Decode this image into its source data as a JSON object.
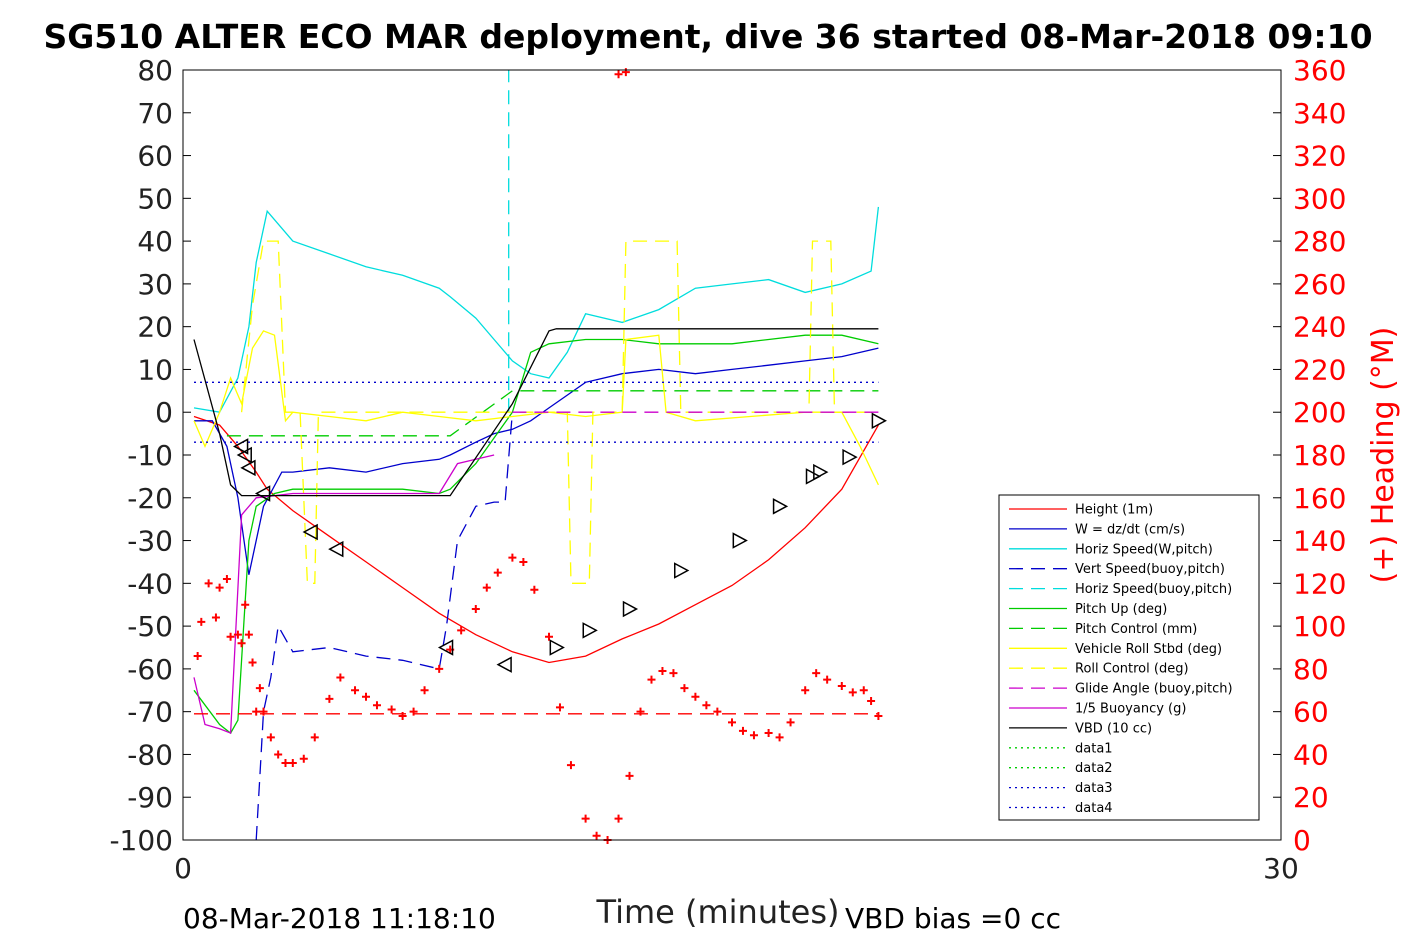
{
  "chart_data": {
    "type": "line",
    "title": "SG510 ALTER ECO MAR deployment, dive 36 started 08-Mar-2018 09:10",
    "xlabel": "Time (minutes)",
    "ylabel_right": "(+) Heading (°M)",
    "xlim": [
      0,
      30
    ],
    "ylim": [
      -100,
      80
    ],
    "y2lim": [
      0,
      360
    ],
    "xticks": [
      "0",
      "30"
    ],
    "yticks": [
      "80",
      "70",
      "60",
      "50",
      "40",
      "30",
      "20",
      "10",
      "0",
      "-10",
      "-20",
      "-30",
      "-40",
      "-50",
      "-60",
      "-70",
      "-80",
      "-90",
      "-100"
    ],
    "y2ticks": [
      "360",
      "340",
      "320",
      "300",
      "280",
      "260",
      "240",
      "220",
      "200",
      "180",
      "160",
      "140",
      "120",
      "100",
      "80",
      "60",
      "40",
      "20",
      "0"
    ],
    "footer_left": "08-Mar-2018 11:18:10",
    "footer_right": "VBD bias =0 cc",
    "legend": [
      {
        "label": "Height (1m)",
        "color": "#ff0000",
        "dash": ""
      },
      {
        "label": "W = dz/dt (cm/s)",
        "color": "#0000cc",
        "dash": ""
      },
      {
        "label": "Horiz Speed(W,pitch)",
        "color": "#00dddd",
        "dash": ""
      },
      {
        "label": "Vert Speed(buoy,pitch)",
        "color": "#0000cc",
        "dash": "14,8"
      },
      {
        "label": "Horiz Speed(buoy,pitch)",
        "color": "#00dddd",
        "dash": "14,8"
      },
      {
        "label": "Pitch Up (deg)",
        "color": "#00cc00",
        "dash": ""
      },
      {
        "label": "Pitch Control (mm)",
        "color": "#00cc00",
        "dash": "14,8"
      },
      {
        "label": "Vehicle Roll Stbd (deg)",
        "color": "#ffff00",
        "dash": ""
      },
      {
        "label": "Roll Control (deg)",
        "color": "#ffff00",
        "dash": "14,8"
      },
      {
        "label": "Glide Angle (buoy,pitch)",
        "color": "#cc00cc",
        "dash": "14,8"
      },
      {
        "label": "1/5 Buoyancy (g)",
        "color": "#cc00cc",
        "dash": ""
      },
      {
        "label": "VBD (10 cc)",
        "color": "#000000",
        "dash": ""
      },
      {
        "label": "data1",
        "color": "#00cc00",
        "dash": "2,4"
      },
      {
        "label": "data2",
        "color": "#00cc00",
        "dash": "2,4"
      },
      {
        "label": "data3",
        "color": "#0000cc",
        "dash": "2,4"
      },
      {
        "label": "data4",
        "color": "#0000cc",
        "dash": "2,4"
      }
    ],
    "series": [
      {
        "name": "Height (1m)",
        "color": "#ff0000",
        "x": [
          0.3,
          1.0,
          1.5,
          2.0,
          2.3,
          3.0,
          4.0,
          5.0,
          6.0,
          7.0,
          8.0,
          9.0,
          10.0,
          11.0,
          12.0,
          13.0,
          14.0,
          15.0,
          16.0,
          17.0,
          18.0,
          19.0
        ],
        "y": [
          -1,
          -3,
          -8,
          -14,
          -18,
          -23,
          -29,
          -35,
          -41,
          -47,
          -52,
          -56,
          -58.5,
          -57,
          -53,
          -49.5,
          -45,
          -40.5,
          -34.5,
          -27,
          -18,
          -3
        ]
      },
      {
        "name": "W = dz/dt (cm/s)",
        "color": "#0000cc",
        "x": [
          0.3,
          0.8,
          1.2,
          1.5,
          1.8,
          2.2,
          2.7,
          3.0,
          4.0,
          5.0,
          6.0,
          7.0,
          7.3,
          8.0,
          8.5,
          9.0,
          9.5,
          10.0,
          10.5,
          11.0,
          12.0,
          13.0,
          14.0,
          15.0,
          16.0,
          17.0,
          18.0,
          19.0
        ],
        "y": [
          -2,
          -2,
          -8,
          -20,
          -38,
          -22,
          -14,
          -14,
          -13,
          -14,
          -12,
          -11,
          -10,
          -7,
          -5,
          -4,
          -2,
          1,
          4,
          7,
          9,
          10,
          9,
          10,
          11,
          12,
          13,
          15
        ]
      },
      {
        "name": "Horiz Speed(W,pitch)",
        "color": "#00dddd",
        "x": [
          0.3,
          1.0,
          1.5,
          1.8,
          2.0,
          2.3,
          3.0,
          4.0,
          5.0,
          6.0,
          7.0,
          7.3,
          8.0,
          8.5,
          9.0,
          9.5,
          10.0,
          10.5,
          11.0,
          12.0,
          13.0,
          14.0,
          15.0,
          16.0,
          17.0,
          18.0,
          18.8,
          19.0
        ],
        "y": [
          1,
          0,
          8,
          20,
          35,
          47,
          40,
          37,
          34,
          32,
          29,
          27,
          22,
          17,
          12,
          9,
          8,
          14,
          23,
          21,
          24,
          29,
          30,
          31,
          28,
          30,
          33,
          48
        ]
      },
      {
        "name": "Vert Speed(buoy,pitch)",
        "color": "#0000cc",
        "dash": "14,8",
        "x": [
          2.0,
          2.1,
          2.2,
          2.4,
          2.6,
          3.0,
          4.0,
          5.0,
          6.0,
          7.0,
          7.2,
          7.5,
          8.0,
          8.5,
          8.8,
          9.0
        ],
        "y": [
          -100,
          -85,
          -70,
          -62,
          -50,
          -56,
          -55,
          -57,
          -58,
          -60,
          -50,
          -30,
          -22,
          -21,
          -21,
          0
        ]
      },
      {
        "name": "Horiz Speed(buoy,pitch)",
        "color": "#00dddd",
        "dash": "14,8",
        "x": [
          8.9,
          8.9
        ],
        "y": [
          0,
          80
        ]
      },
      {
        "name": "Pitch Up (deg)",
        "color": "#00cc00",
        "x": [
          0.3,
          1.0,
          1.3,
          1.5,
          1.8,
          2.0,
          2.5,
          3.0,
          4.0,
          5.0,
          6.0,
          7.0,
          7.3,
          8.0,
          8.5,
          9.0,
          9.5,
          10.0,
          11.0,
          12.0,
          13.0,
          14.0,
          15.0,
          16.0,
          17.0,
          18.0,
          19.0
        ],
        "y": [
          -65,
          -73,
          -75,
          -72,
          -30,
          -22,
          -19,
          -18,
          -18,
          -18,
          -18,
          -19,
          -18,
          -12,
          -6,
          0,
          14,
          16,
          17,
          17,
          16,
          16,
          16,
          17,
          18,
          18,
          16
        ]
      },
      {
        "name": "Pitch Control (mm)",
        "color": "#00cc00",
        "dash": "14,8",
        "x": [
          1.2,
          7.3,
          9.0,
          19.0
        ],
        "y": [
          -5.5,
          -5.5,
          5,
          5
        ]
      },
      {
        "name": "Vehicle Roll Stbd (deg)",
        "color": "#ffff00",
        "x": [
          0.3,
          0.6,
          1.0,
          1.3,
          1.6,
          1.9,
          2.2,
          2.5,
          2.8,
          3.0,
          4.0,
          5.0,
          6.0,
          7.0,
          8.0,
          9.0,
          10.0,
          11.0,
          12.0,
          12.1,
          13.0,
          13.2,
          14.0,
          17.0,
          18.0,
          18.5,
          19.0
        ],
        "y": [
          -2,
          -8,
          0,
          8,
          2,
          15,
          19,
          18,
          -2,
          0,
          -1,
          -2,
          0,
          -1,
          -2,
          -1,
          0,
          -1,
          0,
          17,
          18,
          0,
          -2,
          0,
          0,
          -8,
          -17
        ]
      },
      {
        "name": "Roll Control (deg)",
        "color": "#ffff00",
        "dash": "14,8",
        "x": [
          1.6,
          1.9,
          2.2,
          2.6,
          2.8,
          3.0,
          3.2,
          3.4,
          3.6,
          3.7,
          4.0,
          7.3,
          9.0,
          10.5,
          10.6,
          11.1,
          11.2,
          12.0,
          12.1,
          13.5,
          13.6,
          17.1,
          17.2,
          17.7,
          17.8,
          19.0
        ],
        "y": [
          0,
          25,
          40,
          40,
          0,
          0,
          0,
          -40,
          -40,
          0,
          0,
          0,
          0,
          0,
          -40,
          -40,
          0,
          0,
          40,
          40,
          0,
          0,
          40,
          40,
          0,
          0
        ]
      },
      {
        "name": "Glide Angle (buoy,pitch)",
        "color": "#cc00cc",
        "dash": "14,8",
        "x": [
          9.0,
          19.0
        ],
        "y": [
          0,
          0
        ]
      },
      {
        "name": "1/5 Buoyancy (g)",
        "color": "#cc00cc",
        "x": [
          0.3,
          0.6,
          1.0,
          1.3,
          1.6,
          2.0,
          3.0,
          4.0,
          5.0,
          6.0,
          7.0,
          7.5,
          8.0,
          8.5
        ],
        "y": [
          -62,
          -73,
          -74,
          -75,
          -24,
          -20,
          -19,
          -19,
          -19,
          -19,
          -19,
          -12,
          -11,
          -10
        ]
      },
      {
        "name": "VBD (10 cc)",
        "color": "#000000",
        "x": [
          0.3,
          1.0,
          1.3,
          1.6,
          2.0,
          3.0,
          4.0,
          5.0,
          6.0,
          7.0,
          7.3,
          9.0,
          10.0,
          10.2,
          19.0
        ],
        "y": [
          17,
          -5,
          -17,
          -19.5,
          -19.5,
          -19.5,
          -19.5,
          -19.5,
          -19.5,
          -19.5,
          -19.5,
          2,
          19,
          19.5,
          19.5
        ]
      },
      {
        "name": "data1",
        "color": "#00cc00",
        "dash": "2,4",
        "x": [],
        "y": []
      },
      {
        "name": "data2",
        "color": "#00cc00",
        "dash": "2,4",
        "x": [],
        "y": []
      },
      {
        "name": "data3",
        "color": "#0000cc",
        "dash": "2,4",
        "x": [
          0.3,
          19.0
        ],
        "y": [
          7,
          7
        ]
      },
      {
        "name": "data4",
        "color": "#0000cc",
        "dash": "2,4",
        "x": [
          0.3,
          19.0
        ],
        "y": [
          -7,
          -7
        ]
      }
    ],
    "red_dashed_line": {
      "y": -70.5,
      "x": [
        0.3,
        19.0
      ]
    },
    "heading_points": {
      "x": [
        0.4,
        0.5,
        0.7,
        0.9,
        1.0,
        1.2,
        1.3,
        1.5,
        1.6,
        1.7,
        1.8,
        1.9,
        2.0,
        2.1,
        2.2,
        2.4,
        2.6,
        2.8,
        3.0,
        3.3,
        3.6,
        4.0,
        4.3,
        4.7,
        5.0,
        5.3,
        5.7,
        6.0,
        6.3,
        6.6,
        7.0,
        7.3,
        7.6,
        8.0,
        8.3,
        8.6,
        9.0,
        9.3,
        9.6,
        10.0,
        10.3,
        10.6,
        11.0,
        11.3,
        11.6,
        11.9,
        12.2,
        12.5,
        12.8,
        13.1,
        13.4,
        13.7,
        14.0,
        14.3,
        14.6,
        15.0,
        15.3,
        15.6,
        16.0,
        16.3,
        16.6,
        17.0,
        17.3,
        17.6,
        18.0,
        18.3,
        18.6,
        18.8,
        19.0
      ],
      "y": [
        86,
        102,
        120,
        104,
        118,
        122,
        95,
        96,
        92,
        110,
        96,
        83,
        60,
        71,
        60,
        48,
        40,
        36,
        36,
        38,
        48,
        66,
        76,
        70,
        67,
        63,
        61,
        58,
        60,
        70,
        80,
        89,
        98,
        108,
        118,
        125,
        132,
        130,
        117,
        95,
        62,
        35,
        10,
        2,
        0,
        10,
        30,
        60,
        75,
        79,
        78,
        71,
        67,
        63,
        60,
        55,
        51,
        49,
        50,
        48,
        55,
        70,
        78,
        75,
        72,
        69,
        70,
        65,
        58
      ]
    },
    "heading_top_points": {
      "x": [
        11.9,
        12.1
      ],
      "y": [
        358,
        359
      ]
    },
    "vbd_markers": {
      "x": [
        1.6,
        1.7,
        1.8,
        2.2,
        3.5,
        4.2,
        7.2,
        8.8,
        10.2,
        11.1,
        12.2,
        13.6,
        15.2,
        16.3,
        17.2,
        17.4,
        18.2,
        19.0
      ],
      "y": [
        -8,
        -10,
        -13,
        -19,
        -28,
        -32,
        -55,
        -59,
        -55,
        -51,
        -46,
        -37,
        -30,
        -22,
        -15,
        -14,
        -10.5,
        -2
      ]
    }
  }
}
